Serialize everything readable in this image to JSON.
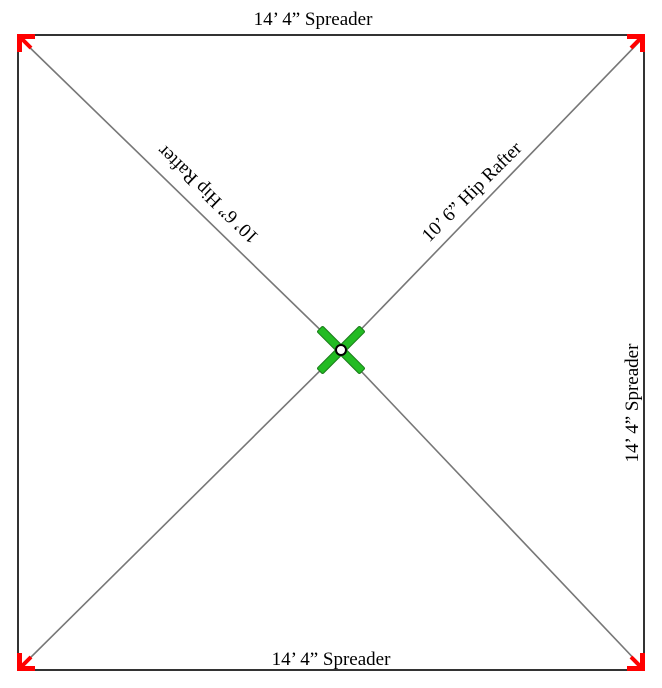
{
  "labels": {
    "top_spreader": "14’ 4” Spreader",
    "right_spreader": "14’ 4” Spreader",
    "bottom_spreader": "14’ 4” Spreader",
    "hip_rafter_left": "10’ 6” Hip Rafter",
    "hip_rafter_right": "10’ 6” Hip Rafter"
  },
  "colors": {
    "frame": "#333333",
    "rafter": "#777777",
    "corner_arrow": "#ff0000",
    "hub": "#22bb22",
    "hub_outline": "#1a7a1a",
    "background": "#ffffff"
  },
  "icons": {
    "corners": "red-corner-arrow",
    "hub": "green-cross-hub"
  }
}
